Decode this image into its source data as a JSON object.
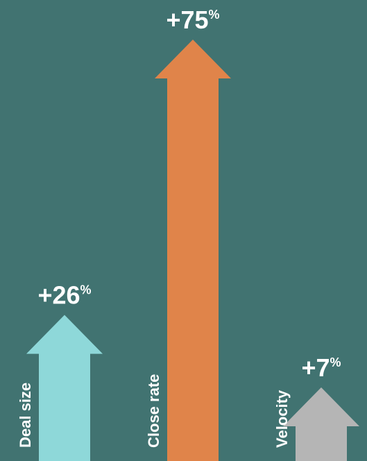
{
  "chart_data": {
    "type": "bar",
    "categories": [
      "Deal size",
      "Close rate",
      "Velocity"
    ],
    "values": [
      26,
      75,
      7
    ],
    "value_labels": [
      "+26",
      "+75",
      "+7"
    ],
    "unit": "%",
    "colors": [
      "#8ed8d9",
      "#e0844a",
      "#b5b5b5"
    ],
    "background": "#417371",
    "title": "",
    "xlabel": "",
    "ylabel": "",
    "grid": false,
    "legend": "none"
  }
}
